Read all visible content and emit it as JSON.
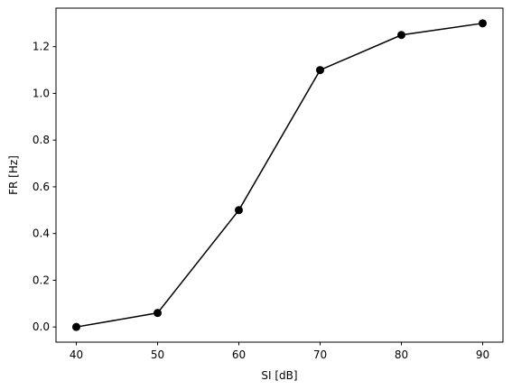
{
  "chart_data": {
    "type": "line",
    "x_label": "SI [dB]",
    "y_label": "FR [Hz]",
    "x": [
      40,
      50,
      60,
      70,
      80,
      90
    ],
    "values": [
      0,
      0.06,
      0.5,
      1.1,
      1.25,
      1.3
    ],
    "color": "#000000",
    "markers": true,
    "xlim": [
      37.5,
      92.5
    ],
    "xticks": [
      40,
      50,
      60,
      70,
      80,
      90
    ],
    "ylim": [
      -0.065,
      1.365
    ],
    "yticks": [
      {
        "value": 0,
        "label": "0.0"
      },
      0.2,
      0.4,
      0.6,
      0.8,
      {
        "value": 1,
        "label": "1.0"
      },
      1.2
    ],
    "grid": false
  }
}
